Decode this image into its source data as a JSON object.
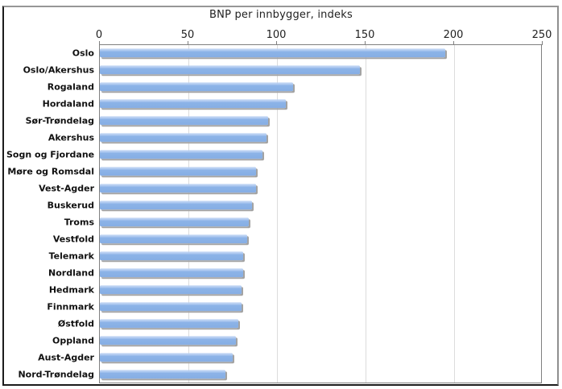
{
  "chart_data": {
    "type": "bar",
    "orientation": "horizontal",
    "title": "BNP per innbygger, indeks",
    "categories": [
      "Oslo",
      "Oslo/Akershus",
      "Rogaland",
      "Hordaland",
      "Sør-Trøndelag",
      "Akershus",
      "Sogn og Fjordane",
      "Møre og Romsdal",
      "Vest-Agder",
      "Buskerud",
      "Troms",
      "Vestfold",
      "Telemark",
      "Nordland",
      "Hedmark",
      "Finnmark",
      "Østfold",
      "Oppland",
      "Aust-Agder",
      "Nord-Trøndelag"
    ],
    "values": [
      195,
      147,
      109,
      105,
      95,
      94,
      92,
      88,
      88,
      86,
      84,
      83,
      81,
      81,
      80,
      80,
      78,
      77,
      75,
      71
    ],
    "x_ticks": [
      0,
      50,
      100,
      150,
      200,
      250
    ],
    "xlim": [
      0,
      250
    ],
    "axis_position": "top",
    "grid": "vertical",
    "legend_position": "none",
    "colors": {
      "bar_fill": "#8DB4E8",
      "bar_shadow": "#A3A3A3",
      "gridline": "#DCDCDC",
      "plot_border": "#808080",
      "text": "#1F1F1F"
    }
  }
}
